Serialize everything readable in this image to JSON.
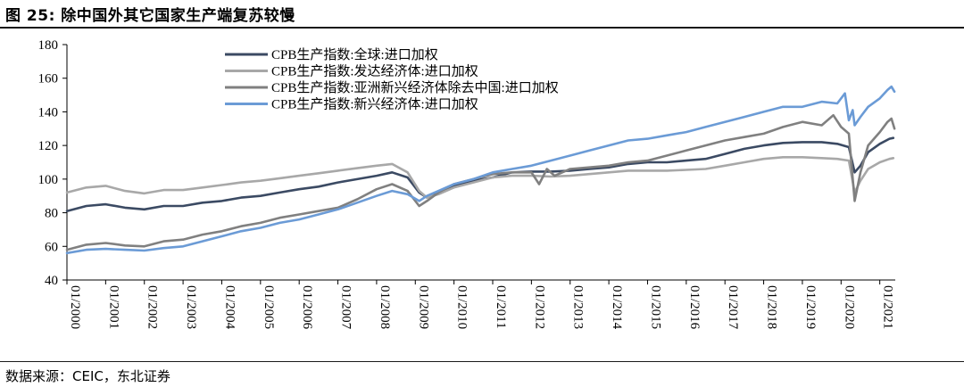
{
  "header": {
    "title": "图 25: 除中国外其它国家生产端复苏较慢"
  },
  "footer": {
    "source": "数据来源：CEIC，东北证券"
  },
  "colors": {
    "series_global": "#3b4a63",
    "series_developed": "#a8a8a8",
    "series_asia_ex_china": "#808080",
    "series_emerging": "#6b9bd6",
    "axis": "#000000"
  },
  "chart_data": {
    "type": "line",
    "title": "",
    "xlabel": "",
    "ylabel": "",
    "ylim": [
      40,
      180
    ],
    "yticks": [
      40,
      60,
      80,
      100,
      120,
      140,
      160,
      180
    ],
    "xlim": [
      2000.0,
      2021.4
    ],
    "xticks": [
      "01/2000",
      "01/2001",
      "01/2002",
      "01/2003",
      "01/2004",
      "01/2005",
      "01/2006",
      "01/2007",
      "01/2008",
      "01/2009",
      "01/2010",
      "01/2011",
      "01/2012",
      "01/2013",
      "01/2014",
      "01/2015",
      "01/2016",
      "01/2017",
      "01/2018",
      "01/2019",
      "01/2020",
      "01/2021"
    ],
    "legend_position": "top-center",
    "grid": false,
    "series": [
      {
        "name": "CPB生产指数:全球:进口加权",
        "color_key": "series_global",
        "points": [
          [
            2000.0,
            81
          ],
          [
            2000.5,
            84
          ],
          [
            2001.0,
            85
          ],
          [
            2001.5,
            83
          ],
          [
            2002.0,
            82
          ],
          [
            2002.5,
            84
          ],
          [
            2003.0,
            84
          ],
          [
            2003.5,
            86
          ],
          [
            2004.0,
            87
          ],
          [
            2004.5,
            89
          ],
          [
            2005.0,
            90
          ],
          [
            2005.5,
            92
          ],
          [
            2006.0,
            94
          ],
          [
            2006.5,
            95.5
          ],
          [
            2007.0,
            98
          ],
          [
            2007.5,
            100
          ],
          [
            2008.0,
            102
          ],
          [
            2008.4,
            104
          ],
          [
            2008.8,
            101
          ],
          [
            2009.1,
            92
          ],
          [
            2009.3,
            89
          ],
          [
            2009.6,
            92
          ],
          [
            2010.0,
            96
          ],
          [
            2010.5,
            99
          ],
          [
            2011.0,
            101
          ],
          [
            2011.5,
            104
          ],
          [
            2012.0,
            104.5
          ],
          [
            2012.5,
            104.5
          ],
          [
            2013.0,
            105
          ],
          [
            2013.5,
            106
          ],
          [
            2014.0,
            107
          ],
          [
            2014.5,
            109
          ],
          [
            2015.0,
            110
          ],
          [
            2015.5,
            110
          ],
          [
            2016.0,
            111
          ],
          [
            2016.5,
            112
          ],
          [
            2017.0,
            115
          ],
          [
            2017.5,
            118
          ],
          [
            2018.0,
            120
          ],
          [
            2018.5,
            121.5
          ],
          [
            2019.0,
            122
          ],
          [
            2019.5,
            122
          ],
          [
            2019.9,
            121
          ],
          [
            2020.2,
            119
          ],
          [
            2020.35,
            104
          ],
          [
            2020.5,
            108
          ],
          [
            2020.7,
            116
          ],
          [
            2021.0,
            121
          ],
          [
            2021.25,
            124
          ],
          [
            2021.35,
            124.5
          ]
        ]
      },
      {
        "name": "CPB生产指数:发达经济体:进口加权",
        "color_key": "series_developed",
        "points": [
          [
            2000.0,
            92
          ],
          [
            2000.5,
            95
          ],
          [
            2001.0,
            96
          ],
          [
            2001.5,
            93
          ],
          [
            2002.0,
            91.5
          ],
          [
            2002.5,
            93.5
          ],
          [
            2003.0,
            93.5
          ],
          [
            2003.5,
            95
          ],
          [
            2004.0,
            96.5
          ],
          [
            2004.5,
            98
          ],
          [
            2005.0,
            99
          ],
          [
            2005.5,
            100.5
          ],
          [
            2006.0,
            102
          ],
          [
            2006.5,
            103.5
          ],
          [
            2007.0,
            105
          ],
          [
            2007.5,
            106.5
          ],
          [
            2008.0,
            108
          ],
          [
            2008.4,
            109
          ],
          [
            2008.8,
            104
          ],
          [
            2009.1,
            93
          ],
          [
            2009.3,
            89
          ],
          [
            2009.6,
            91
          ],
          [
            2010.0,
            95
          ],
          [
            2010.5,
            98
          ],
          [
            2011.0,
            101
          ],
          [
            2011.5,
            102
          ],
          [
            2012.0,
            102
          ],
          [
            2012.5,
            101.5
          ],
          [
            2013.0,
            102
          ],
          [
            2013.5,
            103
          ],
          [
            2014.0,
            104
          ],
          [
            2014.5,
            105
          ],
          [
            2015.0,
            105
          ],
          [
            2015.5,
            105
          ],
          [
            2016.0,
            105.5
          ],
          [
            2016.5,
            106
          ],
          [
            2017.0,
            108
          ],
          [
            2017.5,
            110
          ],
          [
            2018.0,
            112
          ],
          [
            2018.5,
            113
          ],
          [
            2019.0,
            113
          ],
          [
            2019.5,
            112.5
          ],
          [
            2019.9,
            112
          ],
          [
            2020.2,
            111
          ],
          [
            2020.35,
            92
          ],
          [
            2020.5,
            99
          ],
          [
            2020.7,
            106
          ],
          [
            2021.0,
            110
          ],
          [
            2021.25,
            112
          ],
          [
            2021.35,
            112.5
          ]
        ]
      },
      {
        "name": "CPB生产指数:亚洲新兴经济体除去中国:进口加权",
        "color_key": "series_asia_ex_china",
        "points": [
          [
            2000.0,
            58
          ],
          [
            2000.5,
            61
          ],
          [
            2001.0,
            62
          ],
          [
            2001.5,
            60.5
          ],
          [
            2002.0,
            60
          ],
          [
            2002.5,
            63
          ],
          [
            2003.0,
            64
          ],
          [
            2003.5,
            67
          ],
          [
            2004.0,
            69
          ],
          [
            2004.5,
            72
          ],
          [
            2005.0,
            74
          ],
          [
            2005.5,
            77
          ],
          [
            2006.0,
            79
          ],
          [
            2006.5,
            81
          ],
          [
            2007.0,
            83
          ],
          [
            2007.5,
            88
          ],
          [
            2008.0,
            94
          ],
          [
            2008.4,
            97
          ],
          [
            2008.8,
            93
          ],
          [
            2009.1,
            84
          ],
          [
            2009.3,
            87
          ],
          [
            2009.6,
            92
          ],
          [
            2010.0,
            97
          ],
          [
            2010.5,
            100
          ],
          [
            2011.0,
            103
          ],
          [
            2011.5,
            104
          ],
          [
            2012.0,
            104
          ],
          [
            2012.2,
            97
          ],
          [
            2012.4,
            106
          ],
          [
            2012.6,
            102
          ],
          [
            2013.0,
            106
          ],
          [
            2013.5,
            107
          ],
          [
            2014.0,
            108
          ],
          [
            2014.5,
            110
          ],
          [
            2015.0,
            111
          ],
          [
            2015.5,
            114
          ],
          [
            2016.0,
            117
          ],
          [
            2016.5,
            120
          ],
          [
            2017.0,
            123
          ],
          [
            2017.5,
            125
          ],
          [
            2018.0,
            127
          ],
          [
            2018.5,
            131
          ],
          [
            2019.0,
            134
          ],
          [
            2019.5,
            132
          ],
          [
            2019.8,
            138
          ],
          [
            2020.0,
            131
          ],
          [
            2020.2,
            127
          ],
          [
            2020.35,
            87
          ],
          [
            2020.5,
            104
          ],
          [
            2020.7,
            120
          ],
          [
            2021.0,
            128
          ],
          [
            2021.2,
            134
          ],
          [
            2021.3,
            136
          ],
          [
            2021.38,
            130
          ]
        ]
      },
      {
        "name": "CPB生产指数:新兴经济体:进口加权",
        "color_key": "series_emerging",
        "points": [
          [
            2000.0,
            56
          ],
          [
            2000.5,
            58
          ],
          [
            2001.0,
            58.5
          ],
          [
            2001.5,
            58
          ],
          [
            2002.0,
            57.5
          ],
          [
            2002.5,
            59
          ],
          [
            2003.0,
            60
          ],
          [
            2003.5,
            63
          ],
          [
            2004.0,
            66
          ],
          [
            2004.5,
            69
          ],
          [
            2005.0,
            71
          ],
          [
            2005.5,
            74
          ],
          [
            2006.0,
            76
          ],
          [
            2006.5,
            79
          ],
          [
            2007.0,
            82
          ],
          [
            2007.5,
            86
          ],
          [
            2008.0,
            90
          ],
          [
            2008.4,
            93
          ],
          [
            2008.8,
            91
          ],
          [
            2009.1,
            87
          ],
          [
            2009.3,
            90
          ],
          [
            2009.6,
            93
          ],
          [
            2010.0,
            97
          ],
          [
            2010.5,
            100
          ],
          [
            2011.0,
            104
          ],
          [
            2011.5,
            106
          ],
          [
            2012.0,
            108
          ],
          [
            2012.5,
            111
          ],
          [
            2013.0,
            114
          ],
          [
            2013.5,
            117
          ],
          [
            2014.0,
            120
          ],
          [
            2014.5,
            123
          ],
          [
            2015.0,
            124
          ],
          [
            2015.5,
            126
          ],
          [
            2016.0,
            128
          ],
          [
            2016.5,
            131
          ],
          [
            2017.0,
            134
          ],
          [
            2017.5,
            137
          ],
          [
            2018.0,
            140
          ],
          [
            2018.5,
            143
          ],
          [
            2019.0,
            143
          ],
          [
            2019.5,
            146
          ],
          [
            2019.9,
            145
          ],
          [
            2020.1,
            151
          ],
          [
            2020.2,
            135
          ],
          [
            2020.3,
            141
          ],
          [
            2020.35,
            132
          ],
          [
            2020.5,
            137
          ],
          [
            2020.7,
            143
          ],
          [
            2021.0,
            148
          ],
          [
            2021.2,
            153
          ],
          [
            2021.3,
            155
          ],
          [
            2021.38,
            152
          ]
        ]
      }
    ]
  }
}
